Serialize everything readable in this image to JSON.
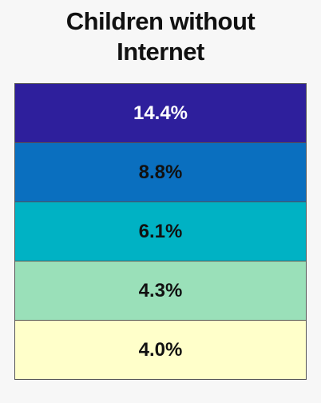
{
  "title": "Children without Internet",
  "legend": [
    {
      "label": "14.4%",
      "color": "#2e1f9c"
    },
    {
      "label": "8.8%",
      "color": "#0a6fbf"
    },
    {
      "label": "6.1%",
      "color": "#00b2c4"
    },
    {
      "label": "4.3%",
      "color": "#9ae0b9"
    },
    {
      "label": "4.0%",
      "color": "#ffffca"
    }
  ]
}
